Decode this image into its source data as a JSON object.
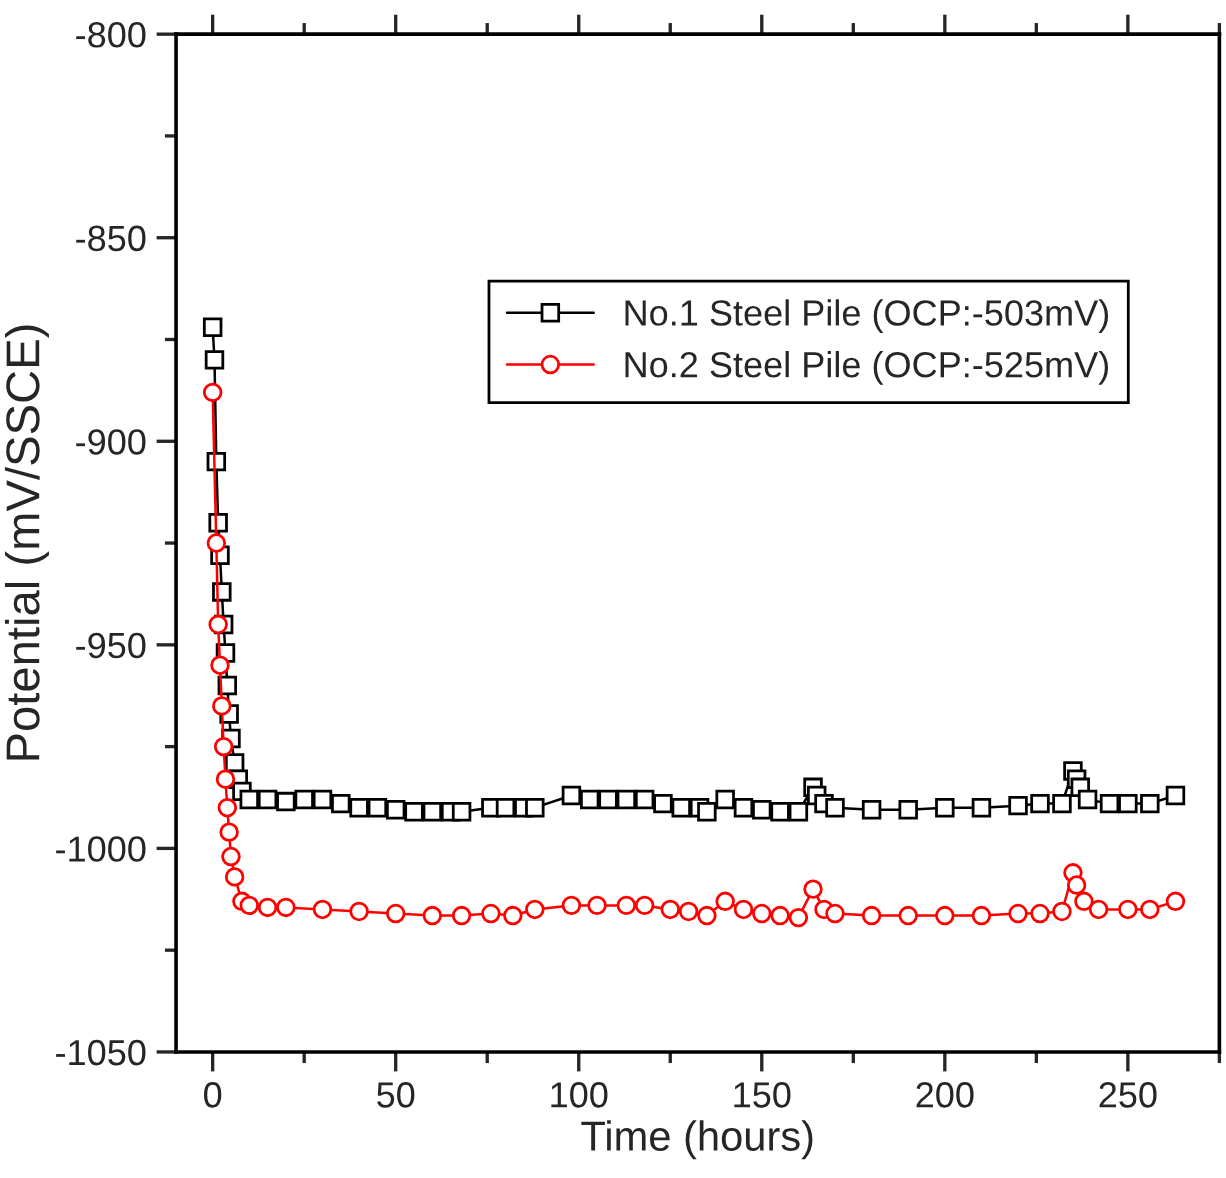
{
  "chart_data": {
    "type": "line",
    "xlabel": "Time (hours)",
    "ylabel": "Potential (mV/SSCE)",
    "xlim": [
      -10,
      275
    ],
    "xticks": [
      0,
      50,
      100,
      150,
      200,
      250
    ],
    "ylim": [
      -1050,
      -800
    ],
    "yticks": [
      -1050,
      -1000,
      -950,
      -900,
      -850,
      -800
    ],
    "legend": "top right",
    "grid": false,
    "series": [
      {
        "name": "No.1 Steel Pile (OCP:-503mV)",
        "color": "#000000",
        "marker": "square",
        "x": [
          0,
          0.5,
          1,
          1.5,
          2,
          2.5,
          3,
          3.5,
          4,
          4.5,
          5,
          6,
          7,
          8,
          10,
          15,
          20,
          25,
          30,
          35,
          40,
          45,
          50,
          55,
          60,
          65,
          68,
          76,
          80,
          85,
          88,
          98,
          103,
          108,
          113,
          118,
          123,
          128,
          133,
          135,
          140,
          145,
          150,
          155,
          160,
          164,
          165,
          167,
          170,
          180,
          190,
          200,
          210,
          220,
          226,
          232,
          235,
          236,
          237,
          239,
          245,
          250,
          256,
          263
        ],
        "values": [
          -872,
          -880,
          -905,
          -920,
          -928,
          -937,
          -945,
          -952,
          -960,
          -967,
          -973,
          -979,
          -983,
          -986,
          -988,
          -988,
          -988.5,
          -988,
          -988,
          -989,
          -990,
          -990,
          -990.5,
          -991,
          -991,
          -991,
          -991,
          -990,
          -990,
          -990,
          -990,
          -987,
          -988,
          -988,
          -988,
          -988,
          -989,
          -990,
          -990,
          -991,
          -988,
          -990,
          -990.5,
          -991,
          -991,
          -985,
          -987,
          -989,
          -990,
          -990.5,
          -990.5,
          -990,
          -990,
          -989.5,
          -989,
          -989,
          -981,
          -983,
          -985,
          -988,
          -989,
          -989,
          -989,
          -987
        ]
      },
      {
        "name": "No.2 Steel Pile (OCP:-525mV)",
        "color": "#ff0000",
        "marker": "circle",
        "x": [
          0,
          1,
          1.5,
          2,
          2.5,
          3,
          3.5,
          4,
          4.5,
          5,
          6,
          8,
          10,
          15,
          20,
          30,
          40,
          50,
          60,
          68,
          76,
          82,
          88,
          98,
          105,
          113,
          118,
          125,
          130,
          135,
          140,
          145,
          150,
          155,
          160,
          164,
          167,
          170,
          180,
          190,
          200,
          210,
          220,
          226,
          232,
          235,
          236,
          238,
          242,
          250,
          256,
          263
        ],
        "values": [
          -888,
          -925,
          -945,
          -955,
          -965,
          -975,
          -983,
          -990,
          -996,
          -1002,
          -1007,
          -1013,
          -1014,
          -1014.5,
          -1014.5,
          -1015,
          -1015.5,
          -1016,
          -1016.5,
          -1016.5,
          -1016,
          -1016.5,
          -1015,
          -1014,
          -1014,
          -1014,
          -1014,
          -1015,
          -1015.5,
          -1016.5,
          -1013,
          -1015,
          -1016,
          -1016.5,
          -1017,
          -1010,
          -1015,
          -1016,
          -1016.5,
          -1016.5,
          -1016.5,
          -1016.5,
          -1016,
          -1016,
          -1015.5,
          -1006,
          -1009,
          -1013,
          -1015,
          -1015,
          -1015,
          -1013
        ]
      }
    ]
  }
}
